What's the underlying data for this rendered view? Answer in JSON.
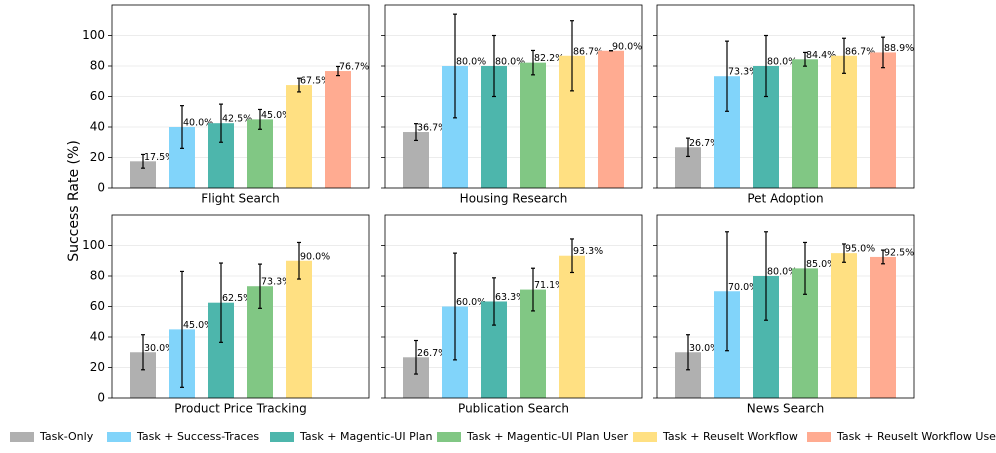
{
  "ylabel": "Success Rate (%)",
  "legend": [
    {
      "name": "Task-Only",
      "color": "#b0b0b0"
    },
    {
      "name": "Task + Success-Traces",
      "color": "#81d4fa"
    },
    {
      "name": "Task + Magentic-UI Plan",
      "color": "#4db6ac"
    },
    {
      "name": "Task + Magentic-UI Plan User",
      "color": "#81c784"
    },
    {
      "name": "Task + ReuseIt Workflow",
      "color": "#ffe082"
    },
    {
      "name": "Task + ReuseIt Workflow User",
      "color": "#ffab91"
    }
  ],
  "chart_data": [
    {
      "type": "bar",
      "xlabel": "Flight Search",
      "ylim": [
        0,
        120
      ],
      "yticks": [
        0,
        20,
        40,
        60,
        80,
        100
      ],
      "values": [
        17.5,
        40.0,
        42.5,
        45.0,
        67.5,
        76.7
      ],
      "errors": [
        4.5,
        14,
        12.5,
        6.5,
        4.5,
        3
      ],
      "value_labels": [
        "17.5%",
        "40.0%",
        "42.5%",
        "45.0%",
        "67.5%",
        "76.7%"
      ]
    },
    {
      "type": "bar",
      "xlabel": "Housing Research",
      "ylim": [
        0,
        120
      ],
      "yticks": [
        0,
        20,
        40,
        60,
        80,
        100
      ],
      "values": [
        36.7,
        80.0,
        80.0,
        82.2,
        86.7,
        90.0
      ],
      "errors": [
        5.5,
        34,
        20,
        8,
        23,
        0
      ],
      "value_labels": [
        "36.7%",
        "80.0%",
        "80.0%",
        "82.2%",
        "86.7%",
        "90.0%"
      ]
    },
    {
      "type": "bar",
      "xlabel": "Pet Adoption",
      "ylim": [
        0,
        120
      ],
      "yticks": [
        0,
        20,
        40,
        60,
        80,
        100
      ],
      "values": [
        26.7,
        73.3,
        80.0,
        84.4,
        86.7,
        88.9
      ],
      "errors": [
        6,
        23,
        20,
        4.5,
        11.5,
        10
      ],
      "value_labels": [
        "26.7%",
        "73.3%",
        "80.0%",
        "84.4%",
        "86.7%",
        "88.9%"
      ]
    },
    {
      "type": "bar",
      "xlabel": "Product Price Tracking",
      "ylim": [
        0,
        120
      ],
      "yticks": [
        0,
        20,
        40,
        60,
        80,
        100
      ],
      "values": [
        30.0,
        45.0,
        62.5,
        73.3,
        90.0,
        null
      ],
      "errors": [
        11.5,
        38,
        26,
        14.5,
        12,
        null
      ],
      "value_labels": [
        "30.0%",
        "45.0%",
        "62.5%",
        "73.3%",
        "90.0%",
        null
      ]
    },
    {
      "type": "bar",
      "xlabel": "Publication Search",
      "ylim": [
        0,
        120
      ],
      "yticks": [
        0,
        20,
        40,
        60,
        80,
        100
      ],
      "values": [
        26.7,
        60.0,
        63.3,
        71.1,
        93.3,
        null
      ],
      "errors": [
        11,
        35,
        15.5,
        14,
        11,
        null
      ],
      "value_labels": [
        "26.7%",
        "60.0%",
        "63.3%",
        "71.1%",
        "93.3%",
        null
      ]
    },
    {
      "type": "bar",
      "xlabel": "News Search",
      "ylim": [
        0,
        120
      ],
      "yticks": [
        0,
        20,
        40,
        60,
        80,
        100
      ],
      "values": [
        30.0,
        70.0,
        80.0,
        85.0,
        95.0,
        92.5
      ],
      "errors": [
        11.5,
        39,
        29,
        17,
        6,
        4.5
      ],
      "value_labels": [
        "30.0%",
        "70.0%",
        "80.0%",
        "85.0%",
        "95.0%",
        "92.5%"
      ]
    }
  ]
}
